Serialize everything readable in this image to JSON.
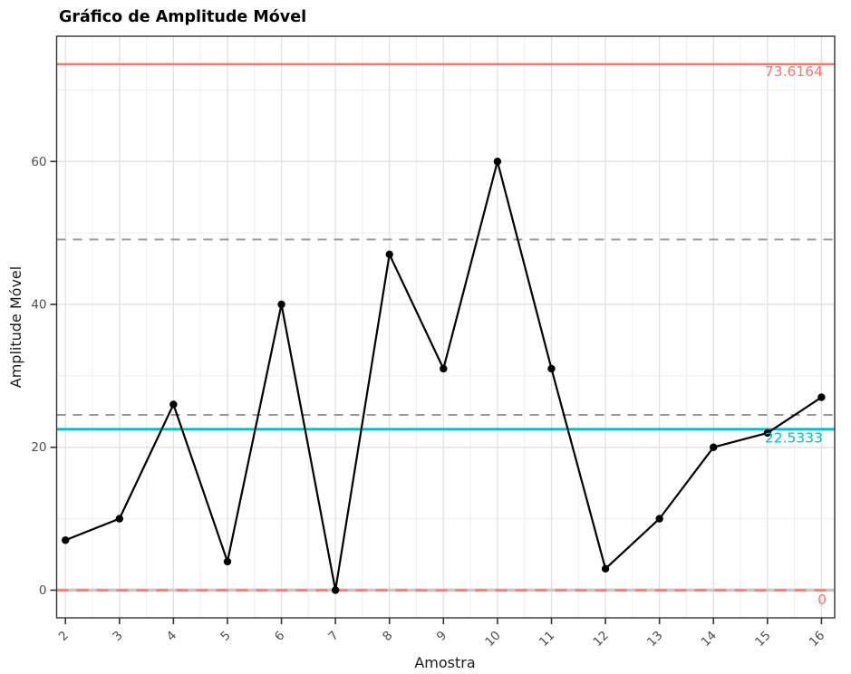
{
  "chart_data": {
    "type": "line",
    "title": "Gráfico de Amplitude Móvel",
    "xlabel": "Amostra",
    "ylabel": "Amplitude Móvel",
    "x": [
      2,
      3,
      4,
      5,
      6,
      7,
      8,
      9,
      10,
      11,
      12,
      13,
      14,
      15,
      16
    ],
    "values": [
      7,
      10,
      26,
      4,
      40,
      0,
      47,
      31,
      60,
      31,
      3,
      10,
      20,
      22,
      27
    ],
    "series_name": "Amplitude Móvel",
    "series_color": "#000000",
    "center_line": {
      "value": 22.5333,
      "label": "22.5333",
      "color": "#00BFC4",
      "style": "solid"
    },
    "upper_control_limit": {
      "value": 73.6164,
      "label": "73.6164",
      "color": "#F8766D",
      "style": "solid"
    },
    "lower_control_limit": {
      "value": 0,
      "label": "0",
      "color": "#F8766D",
      "style": "dashed"
    },
    "zero_baseline_color": "#c9c9c9",
    "sigma_zone_lines": {
      "values": [
        24.5388,
        49.0776
      ],
      "color": "#999999",
      "style": "dashed"
    },
    "x_ticks": [
      2,
      3,
      4,
      5,
      6,
      7,
      8,
      9,
      10,
      11,
      12,
      13,
      14,
      15,
      16
    ],
    "y_ticks": [
      0,
      20,
      40,
      60
    ],
    "y_minor_ticks": [
      10,
      30,
      50,
      70
    ],
    "xlim": [
      1.837,
      16.245
    ],
    "ylim": [
      -3.87,
      77.53
    ],
    "grid": "on",
    "legend": "none",
    "x_tick_rotation_deg": 45,
    "colors": {
      "grid_major": "#e3e3e3",
      "grid_minor": "#f0f0f0",
      "panel_border": "#333333",
      "tick_label": "#4d4d4d",
      "axis_title": "#1a1a1a",
      "title": "#000000"
    }
  }
}
